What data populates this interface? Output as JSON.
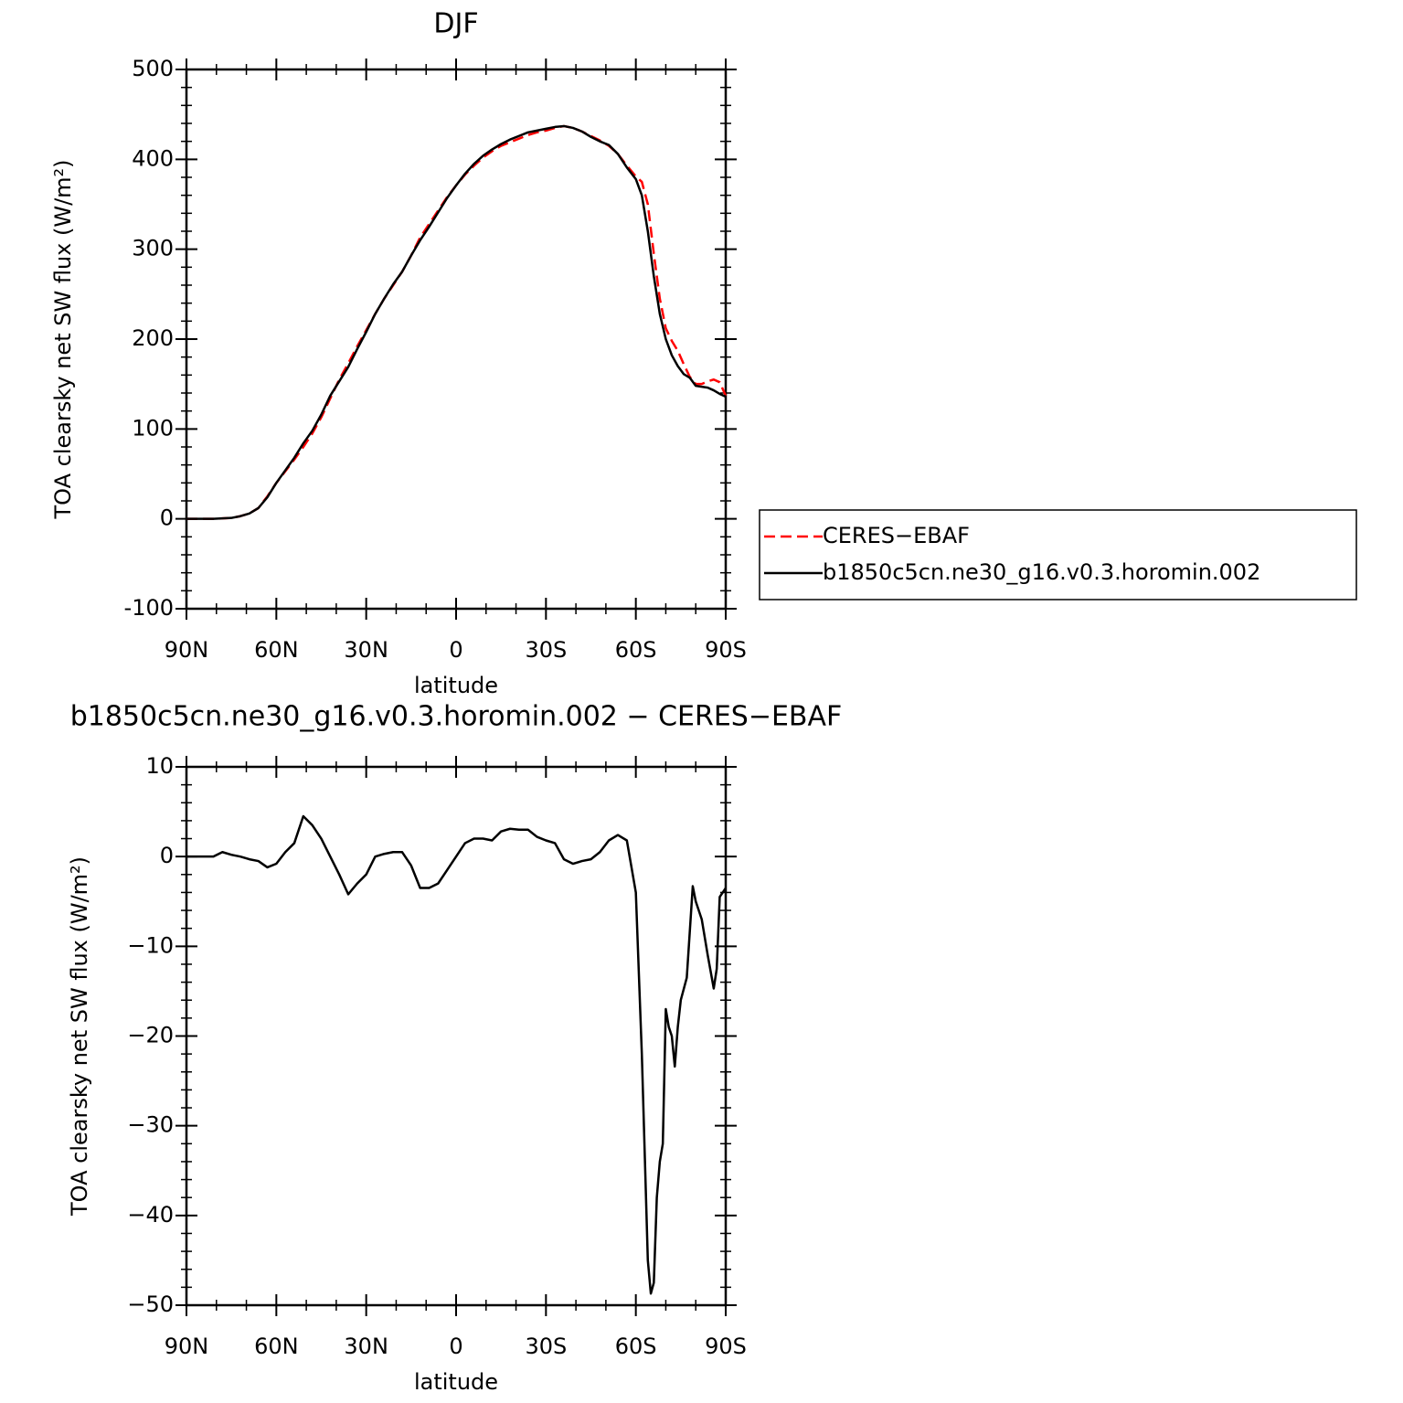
{
  "chart_data": [
    {
      "type": "line",
      "title": "DJF",
      "xlabel": "latitude",
      "ylabel": "TOA clearsky net SW flux (W/m²)",
      "x": [
        90,
        87,
        84,
        81,
        78,
        75,
        72,
        69,
        66,
        63,
        60,
        57,
        54,
        51,
        48,
        45,
        42,
        39,
        36,
        33,
        30,
        27,
        24,
        21,
        18,
        15,
        12,
        9,
        6,
        3,
        0,
        -3,
        -6,
        -9,
        -12,
        -15,
        -18,
        -21,
        -24,
        -27,
        -30,
        -33,
        -36,
        -39,
        -42,
        -45,
        -48,
        -51,
        -54,
        -57,
        -60,
        -62,
        -64,
        -66,
        -68,
        -70,
        -72,
        -74,
        -76,
        -78,
        -80,
        -82,
        -84,
        -86,
        -88,
        -90
      ],
      "series": [
        {
          "name": "CERES−EBAF",
          "color": "#ff0000",
          "dashed": true,
          "values": [
            0,
            0,
            0,
            0,
            0.5,
            1,
            3,
            6,
            12,
            25,
            40,
            53,
            66,
            80,
            95,
            113,
            134,
            155,
            173,
            192,
            210,
            228,
            245,
            260,
            275,
            293,
            313,
            328,
            343,
            358,
            371,
            383,
            393,
            402,
            409,
            415,
            419,
            423,
            427,
            430,
            432,
            435,
            437,
            435,
            431,
            426,
            421,
            415,
            406,
            393,
            381,
            375,
            350,
            295,
            245,
            212,
            198,
            187,
            172,
            158,
            150,
            150,
            153,
            155,
            152,
            137
          ]
        },
        {
          "name": "b1850c5cn.ne30_g16.v0.3.horomin.002",
          "color": "#000000",
          "dashed": false,
          "values": [
            0,
            0,
            0,
            0,
            0.5,
            1,
            3,
            6,
            12,
            24,
            40,
            54,
            68,
            84,
            98,
            116,
            137,
            153,
            169,
            189,
            208,
            228,
            245,
            261,
            275,
            293,
            310,
            325,
            341,
            357,
            371,
            384,
            395,
            404,
            411,
            417,
            422,
            426,
            430,
            432,
            434,
            436,
            437,
            435,
            431,
            425,
            420,
            416,
            406,
            391,
            378,
            360,
            320,
            270,
            228,
            200,
            182,
            170,
            161,
            157,
            148,
            147,
            146,
            143,
            139,
            136
          ]
        }
      ],
      "xlim": [
        90,
        -90
      ],
      "xticks": [
        {
          "value": 90,
          "label": "90N"
        },
        {
          "value": 60,
          "label": "60N"
        },
        {
          "value": 30,
          "label": "30N"
        },
        0,
        {
          "value": -30,
          "label": "30S"
        },
        {
          "value": -60,
          "label": "60S"
        },
        {
          "value": -90,
          "label": "90S"
        }
      ],
      "ylim": [
        -100,
        500
      ],
      "yticks": [
        -100,
        0,
        100,
        200,
        300,
        400,
        500
      ],
      "legend": "right"
    },
    {
      "type": "line",
      "title": "b1850c5cn.ne30_g16.v0.3.horomin.002 − CERES−EBAF",
      "xlabel": "latitude",
      "ylabel": "TOA clearsky net SW flux (W/m²)",
      "x": [
        90,
        87,
        84,
        81,
        78,
        75,
        72,
        69,
        66,
        63,
        60,
        57,
        54,
        51,
        48,
        45,
        42,
        39,
        36,
        33,
        30,
        27,
        24,
        21,
        18,
        15,
        12,
        9,
        6,
        3,
        0,
        -3,
        -6,
        -9,
        -12,
        -15,
        -18,
        -21,
        -24,
        -27,
        -30,
        -33,
        -36,
        -39,
        -42,
        -45,
        -48,
        -51,
        -54,
        -57,
        -60,
        -62,
        -64,
        -65,
        -66,
        -67,
        -68,
        -69,
        -70,
        -71,
        -72,
        -73,
        -74,
        -75,
        -77,
        -79,
        -80,
        -82,
        -84,
        -86,
        -87,
        -88,
        -90
      ],
      "values": [
        0,
        0,
        0,
        0,
        0.5,
        0.2,
        0,
        -0.3,
        -0.5,
        -1.2,
        -0.8,
        0.5,
        1.5,
        4.5,
        3.5,
        2,
        0,
        -2,
        -4.2,
        -3,
        -2,
        0,
        0.3,
        0.5,
        0.5,
        -1,
        -3.5,
        -3.5,
        -3,
        -1.5,
        0,
        1.5,
        2,
        2,
        1.8,
        2.8,
        3.1,
        3,
        3,
        2.2,
        1.8,
        1.5,
        -0.3,
        -0.8,
        -0.5,
        -0.3,
        0.5,
        1.8,
        2.4,
        1.8,
        -4,
        -22,
        -45,
        -48.7,
        -47.5,
        -38,
        -34,
        -32,
        -17,
        -19,
        -20,
        -23.4,
        -19,
        -16,
        -13.5,
        -3.3,
        -5,
        -7,
        -11,
        -14.7,
        -12.5,
        -4.5,
        -3.5
      ],
      "color": "#000000",
      "xlim": [
        90,
        -90
      ],
      "xticks": [
        {
          "value": 90,
          "label": "90N"
        },
        {
          "value": 60,
          "label": "60N"
        },
        {
          "value": 30,
          "label": "30N"
        },
        0,
        {
          "value": -30,
          "label": "30S"
        },
        {
          "value": -60,
          "label": "60S"
        },
        {
          "value": -90,
          "label": "90S"
        }
      ],
      "ylim": [
        -50,
        10
      ],
      "yticks": [
        {
          "value": -50,
          "label": "−50"
        },
        {
          "value": -40,
          "label": "−40"
        },
        {
          "value": -30,
          "label": "−30"
        },
        {
          "value": -20,
          "label": "−20"
        },
        {
          "value": -10,
          "label": "−10"
        },
        0,
        10
      ]
    }
  ]
}
